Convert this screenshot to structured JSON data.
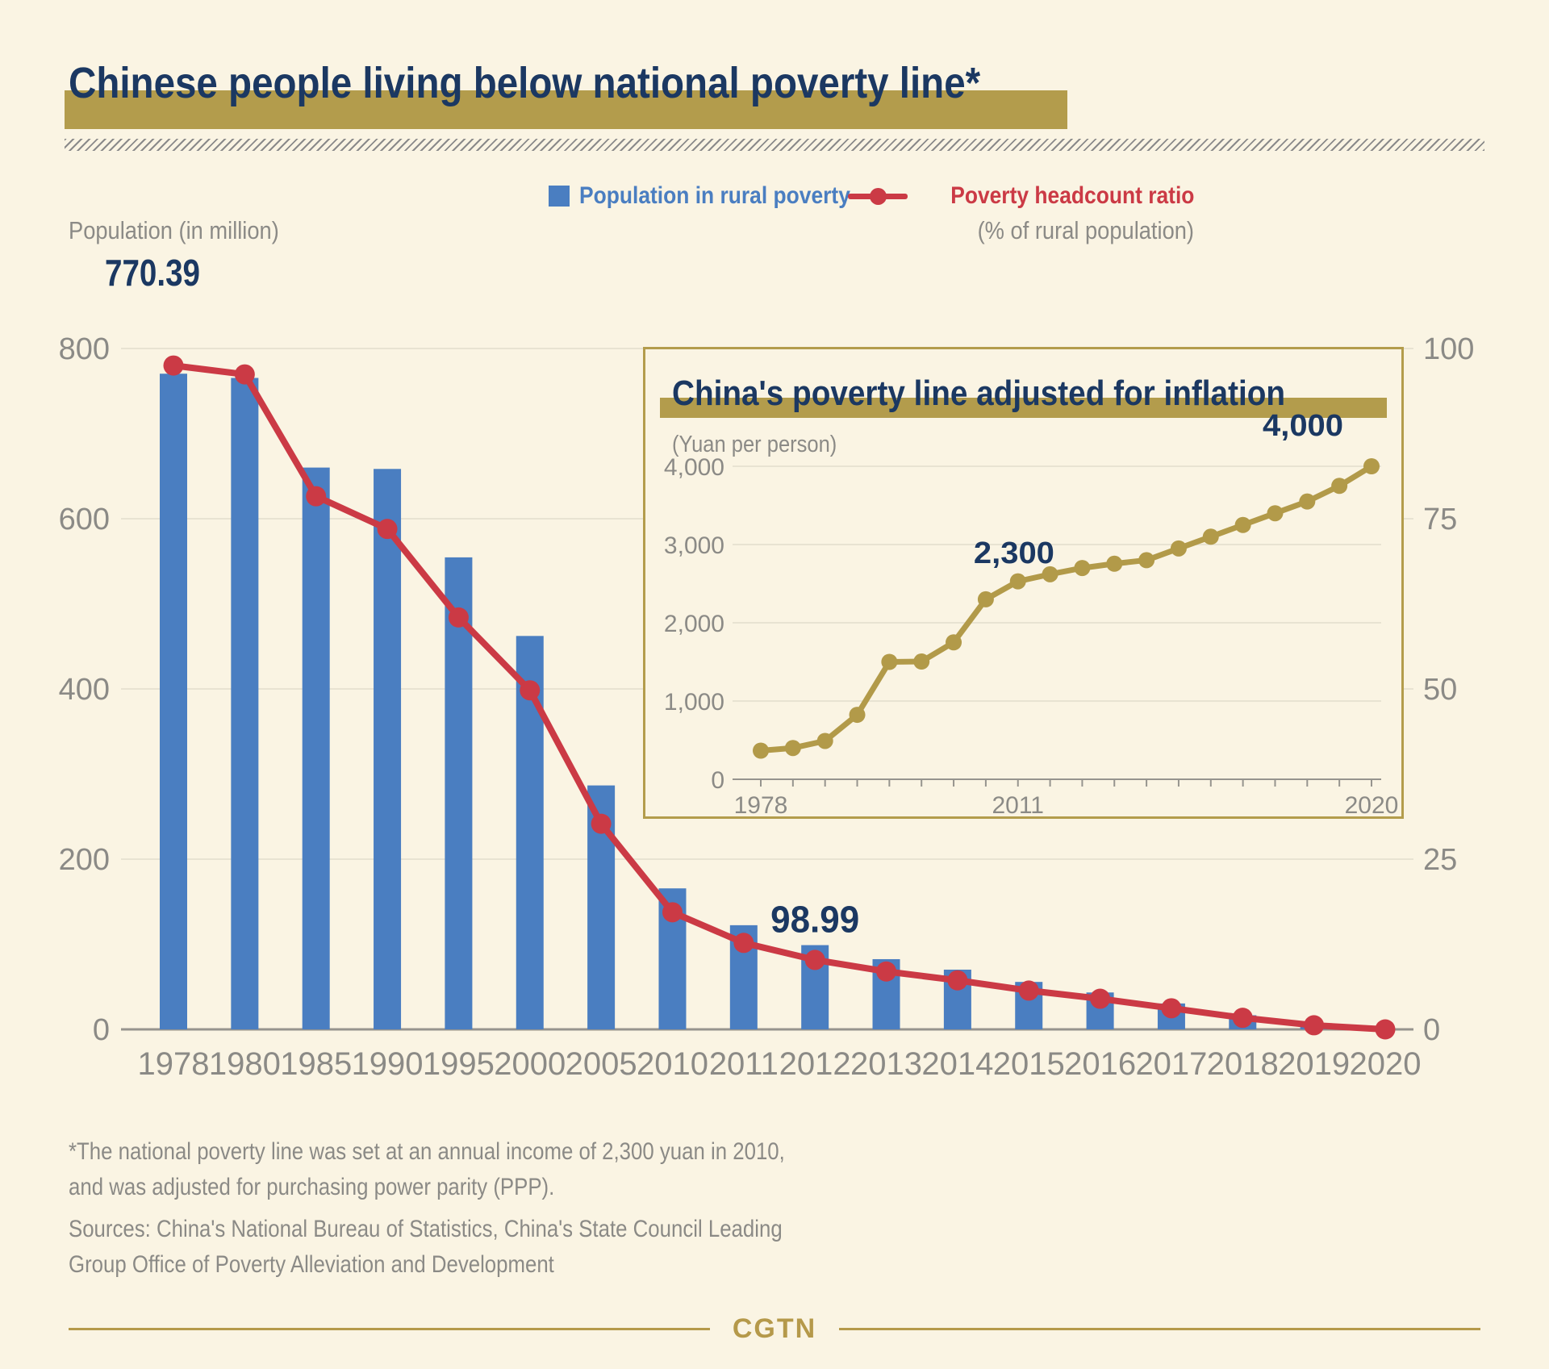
{
  "header": {
    "title": "Chinese people living below national poverty line*"
  },
  "legend": {
    "bar_label": "Population in rural poverty",
    "line_label": "Poverty headcount ratio"
  },
  "chart_data": [
    {
      "type": "bar",
      "title": "Chinese people living below national poverty line",
      "categories": [
        "1978",
        "1980",
        "1985",
        "1990",
        "1995",
        "2000",
        "2005",
        "2010",
        "2011",
        "2012",
        "2013",
        "2014",
        "2015",
        "2016",
        "2017",
        "2018",
        "2019",
        "2020"
      ],
      "series": [
        {
          "name": "Population in rural poverty",
          "type": "bar",
          "axis": "left",
          "color": "#4a7ec1",
          "values": [
            770.39,
            765.42,
            660.1,
            658.5,
            554.6,
            462.24,
            286.62,
            165.67,
            122.38,
            98.99,
            82.49,
            70.17,
            55.75,
            43.35,
            30.46,
            16.6,
            5.51,
            0
          ]
        },
        {
          "name": "Poverty headcount ratio",
          "type": "line",
          "axis": "right",
          "color": "#cb3a45",
          "values": [
            97.5,
            96.2,
            78.3,
            73.5,
            60.5,
            49.8,
            30.2,
            17.2,
            12.7,
            10.2,
            8.5,
            7.2,
            5.7,
            4.5,
            3.1,
            1.7,
            0.6,
            0
          ]
        }
      ],
      "left_axis": {
        "title": "Population (in million)",
        "ticks": [
          800,
          600,
          400,
          200,
          0
        ],
        "range": [
          0,
          800
        ]
      },
      "right_axis": {
        "title": "(% of rural population)",
        "ticks": [
          100,
          75,
          50,
          25,
          0
        ],
        "range": [
          0,
          100
        ]
      },
      "annotations": [
        {
          "text": "770.39",
          "category": "1978"
        },
        {
          "text": "98.99",
          "category": "2012"
        }
      ],
      "grid": true,
      "legend_position": "top-right"
    },
    {
      "type": "line",
      "title": "China's poverty line adjusted for inflation",
      "unit_label": "(Yuan per person)",
      "color": "#b29a49",
      "values": [
        366,
        400,
        490,
        824,
        1500,
        1505,
        1750,
        2300,
        2530,
        2620,
        2700,
        2755,
        2800,
        2950,
        3100,
        3250,
        3400,
        3550,
        3750,
        4000
      ],
      "x_tick_labels": [
        {
          "index": 0,
          "label": "1978"
        },
        {
          "index": 8,
          "label": "2011"
        },
        {
          "index": 19,
          "label": "2020"
        }
      ],
      "y_axis": {
        "ticks": [
          4000,
          3000,
          2000,
          1000,
          0
        ],
        "range": [
          0,
          4000
        ]
      },
      "annotations": [
        {
          "text": "2,300",
          "index": 7
        },
        {
          "text": "4,000",
          "index": 19
        }
      ],
      "grid": true
    }
  ],
  "footnotes": {
    "note_lines": [
      "*The national poverty line was set at an annual income of 2,300 yuan in 2010,",
      "and was adjusted for purchasing power parity (PPP)."
    ],
    "sources_lines": [
      "Sources: China's National Bureau of Statistics, China's State Council Leading",
      "Group Office of Poverty Alleviation and Development"
    ]
  },
  "footer": {
    "brand": "CGTN"
  },
  "colors": {
    "background": "#faf4e3",
    "navy": "#1b3862",
    "gold": "#b39c4c",
    "bar_blue": "#4a7ec1",
    "line_red": "#cb3a45",
    "text_gray": "#8b8a86",
    "gridline": "#e8e3d2",
    "axis_gray": "#96948e"
  }
}
